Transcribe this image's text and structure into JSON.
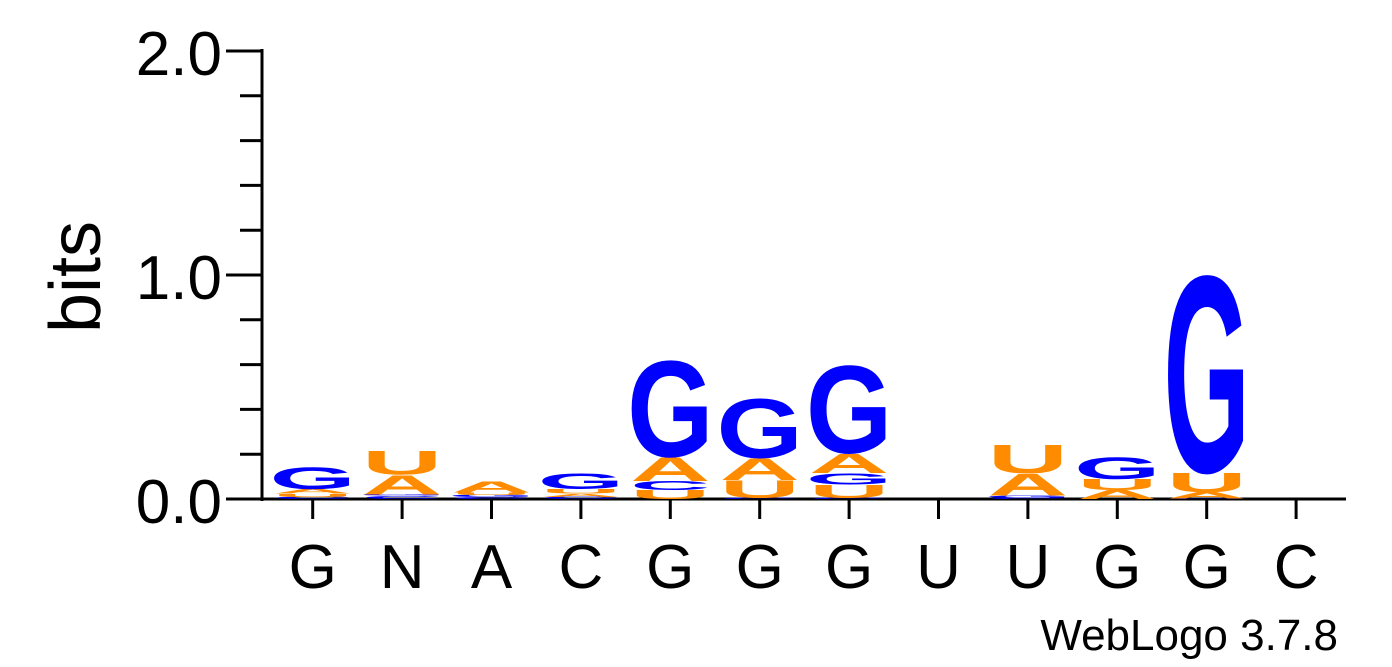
{
  "chart_data": {
    "type": "sequence-logo",
    "ylabel": "bits",
    "ylim": [
      0,
      2.0
    ],
    "yticks": [
      "0.0",
      "1.0",
      "2.0"
    ],
    "yticks_values": [
      0,
      1,
      2
    ],
    "minor_tick_step": 0.2,
    "positions": [
      "G",
      "N",
      "A",
      "C",
      "G",
      "G",
      "G",
      "U",
      "U",
      "G",
      "G",
      "C"
    ],
    "stacks": [
      [
        {
          "letter": "C",
          "bits": 0.01
        },
        {
          "letter": "U",
          "bits": 0.015
        },
        {
          "letter": "A",
          "bits": 0.02
        },
        {
          "letter": "G",
          "bits": 0.1
        }
      ],
      [
        {
          "letter": "C",
          "bits": 0.015
        },
        {
          "letter": "G",
          "bits": 0.005
        },
        {
          "letter": "A",
          "bits": 0.09
        },
        {
          "letter": "U",
          "bits": 0.11
        }
      ],
      [
        {
          "letter": "C",
          "bits": 0.008
        },
        {
          "letter": "G",
          "bits": 0.01
        },
        {
          "letter": "U",
          "bits": 0.012
        },
        {
          "letter": "A",
          "bits": 0.05
        }
      ],
      [
        {
          "letter": "C",
          "bits": 0.01
        },
        {
          "letter": "A",
          "bits": 0.015
        },
        {
          "letter": "U",
          "bits": 0.02
        },
        {
          "letter": "G",
          "bits": 0.07
        }
      ],
      [
        {
          "letter": "U",
          "bits": 0.04
        },
        {
          "letter": "C",
          "bits": 0.04
        },
        {
          "letter": "A",
          "bits": 0.11
        },
        {
          "letter": "G",
          "bits": 0.44
        }
      ],
      [
        {
          "letter": "C",
          "bits": 0.005
        },
        {
          "letter": "U",
          "bits": 0.08
        },
        {
          "letter": "A",
          "bits": 0.1
        },
        {
          "letter": "G",
          "bits": 0.27
        }
      ],
      [
        {
          "letter": "C",
          "bits": 0.005
        },
        {
          "letter": "U",
          "bits": 0.06
        },
        {
          "letter": "G",
          "bits": 0.05
        },
        {
          "letter": "A",
          "bits": 0.09
        },
        {
          "letter": "G",
          "bits": 0.4
        }
      ],
      [],
      [
        {
          "letter": "C",
          "bits": 0.005
        },
        {
          "letter": "G",
          "bits": 0.01
        },
        {
          "letter": "A",
          "bits": 0.1
        },
        {
          "letter": "U",
          "bits": 0.13
        }
      ],
      [
        {
          "letter": "A",
          "bits": 0.04
        },
        {
          "letter": "U",
          "bits": 0.05
        },
        {
          "letter": "G",
          "bits": 0.1
        }
      ],
      [
        {
          "letter": "C",
          "bits": 0.002
        },
        {
          "letter": "A",
          "bits": 0.03
        },
        {
          "letter": "U",
          "bits": 0.09
        },
        {
          "letter": "G",
          "bits": 0.9
        }
      ],
      []
    ],
    "colors": {
      "G": "#0000ff",
      "A": "#ff8c00",
      "U": "#ff8c00",
      "C": "#0000ff"
    },
    "footer": "WebLogo 3.7.8"
  }
}
